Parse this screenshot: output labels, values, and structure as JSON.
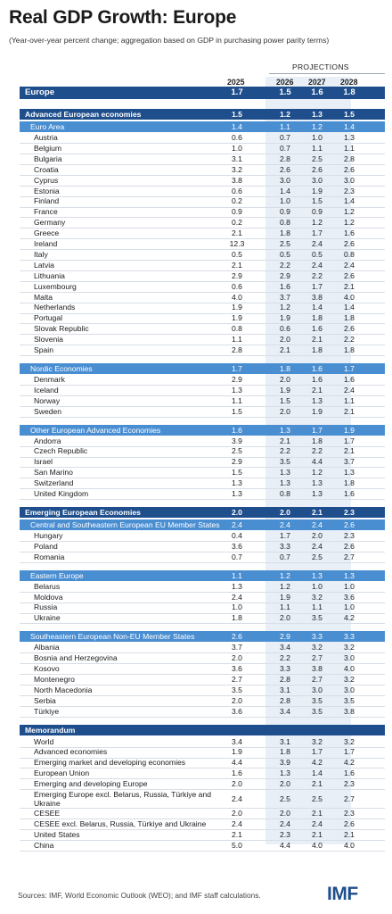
{
  "title": "Real GDP Growth: Europe",
  "subtitle": "(Year-over-year percent change; aggregation based on GDP in purchasing power parity terms)",
  "projections_label": "PROJECTIONS",
  "years": [
    "2025",
    "2026",
    "2027",
    "2028"
  ],
  "europe": {
    "name": "Europe",
    "values": [
      "1.7",
      "1.5",
      "1.6",
      "1.8"
    ]
  },
  "sections": [
    {
      "name": "Advanced European economies",
      "values": [
        "1.5",
        "1.2",
        "1.3",
        "1.5"
      ],
      "groups": [
        {
          "name": "Euro Area",
          "values": [
            "1.4",
            "1.1",
            "1.2",
            "1.4"
          ],
          "rows": [
            {
              "name": "Austria",
              "values": [
                "0.6",
                "0.7",
                "1.0",
                "1.3"
              ]
            },
            {
              "name": "Belgium",
              "values": [
                "1.0",
                "0.7",
                "1.1",
                "1.1"
              ]
            },
            {
              "name": "Bulgaria",
              "values": [
                "3.1",
                "2.8",
                "2.5",
                "2.8"
              ]
            },
            {
              "name": "Croatia",
              "values": [
                "3.2",
                "2.6",
                "2.6",
                "2.6"
              ]
            },
            {
              "name": "Cyprus",
              "values": [
                "3.8",
                "3.0",
                "3.0",
                "3.0"
              ]
            },
            {
              "name": "Estonia",
              "values": [
                "0.6",
                "1.4",
                "1.9",
                "2.3"
              ]
            },
            {
              "name": "Finland",
              "values": [
                "0.2",
                "1.0",
                "1.5",
                "1.4"
              ]
            },
            {
              "name": "France",
              "values": [
                "0.9",
                "0.9",
                "0.9",
                "1.2"
              ]
            },
            {
              "name": "Germany",
              "values": [
                "0.2",
                "0.8",
                "1.2",
                "1.2"
              ]
            },
            {
              "name": "Greece",
              "values": [
                "2.1",
                "1.8",
                "1.7",
                "1.6"
              ]
            },
            {
              "name": "Ireland",
              "values": [
                "12.3",
                "2.5",
                "2.4",
                "2.6"
              ]
            },
            {
              "name": "Italy",
              "values": [
                "0.5",
                "0.5",
                "0.5",
                "0.8"
              ]
            },
            {
              "name": "Latvia",
              "values": [
                "2.1",
                "2.2",
                "2.4",
                "2.4"
              ]
            },
            {
              "name": "Lithuania",
              "values": [
                "2.9",
                "2.9",
                "2.2",
                "2.6"
              ]
            },
            {
              "name": "Luxembourg",
              "values": [
                "0.6",
                "1.6",
                "1.7",
                "2.1"
              ]
            },
            {
              "name": "Malta",
              "values": [
                "4.0",
                "3.7",
                "3.8",
                "4.0"
              ]
            },
            {
              "name": "Netherlands",
              "values": [
                "1.9",
                "1.2",
                "1.4",
                "1.4"
              ]
            },
            {
              "name": "Portugal",
              "values": [
                "1.9",
                "1.9",
                "1.8",
                "1.8"
              ]
            },
            {
              "name": "Slovak Republic",
              "values": [
                "0.8",
                "0.6",
                "1.6",
                "2.6"
              ]
            },
            {
              "name": "Slovenia",
              "values": [
                "1.1",
                "2.0",
                "2.1",
                "2.2"
              ]
            },
            {
              "name": "Spain",
              "values": [
                "2.8",
                "2.1",
                "1.8",
                "1.8"
              ]
            }
          ]
        },
        {
          "name": "Nordic Economies",
          "values": [
            "1.7",
            "1.8",
            "1.6",
            "1.7"
          ],
          "rows": [
            {
              "name": "Denmark",
              "values": [
                "2.9",
                "2.0",
                "1.6",
                "1.6"
              ]
            },
            {
              "name": "Iceland",
              "values": [
                "1.3",
                "1.9",
                "2.1",
                "2.4"
              ]
            },
            {
              "name": "Norway",
              "values": [
                "1.1",
                "1.5",
                "1.3",
                "1.1"
              ]
            },
            {
              "name": "Sweden",
              "values": [
                "1.5",
                "2.0",
                "1.9",
                "2.1"
              ]
            }
          ]
        },
        {
          "name": "Other European Advanced Economies",
          "values": [
            "1.6",
            "1.3",
            "1.7",
            "1.9"
          ],
          "rows": [
            {
              "name": "Andorra",
              "values": [
                "3.9",
                "2.1",
                "1.8",
                "1.7"
              ]
            },
            {
              "name": "Czech Republic",
              "values": [
                "2.5",
                "2.2",
                "2.2",
                "2.1"
              ]
            },
            {
              "name": "Israel",
              "values": [
                "2.9",
                "3.5",
                "4.4",
                "3.7"
              ]
            },
            {
              "name": "San Marino",
              "values": [
                "1.5",
                "1.3",
                "1.2",
                "1.3"
              ]
            },
            {
              "name": "Switzerland",
              "values": [
                "1.3",
                "1.3",
                "1.3",
                "1.8"
              ]
            },
            {
              "name": "United Kingdom",
              "values": [
                "1.3",
                "0.8",
                "1.3",
                "1.6"
              ]
            }
          ]
        }
      ]
    },
    {
      "name": "Emerging European Economies",
      "values": [
        "2.0",
        "2.0",
        "2.1",
        "2.3"
      ],
      "groups": [
        {
          "name": "Central and Southeastern European EU Member States",
          "values": [
            "2.4",
            "2.4",
            "2.4",
            "2.6"
          ],
          "rows": [
            {
              "name": "Hungary",
              "values": [
                "0.4",
                "1.7",
                "2.0",
                "2.3"
              ]
            },
            {
              "name": "Poland",
              "values": [
                "3.6",
                "3.3",
                "2.4",
                "2.6"
              ]
            },
            {
              "name": "Romania",
              "values": [
                "0.7",
                "0.7",
                "2.5",
                "2.7"
              ]
            }
          ]
        },
        {
          "name": "Eastern Europe",
          "values": [
            "1.1",
            "1.2",
            "1.3",
            "1.3"
          ],
          "rows": [
            {
              "name": "Belarus",
              "values": [
                "1.3",
                "1.2",
                "1.0",
                "1.0"
              ]
            },
            {
              "name": "Moldova",
              "values": [
                "2.4",
                "1.9",
                "3.2",
                "3.6"
              ]
            },
            {
              "name": "Russia",
              "values": [
                "1.0",
                "1.1",
                "1.1",
                "1.0"
              ]
            },
            {
              "name": "Ukraine",
              "values": [
                "1.8",
                "2.0",
                "3.5",
                "4.2"
              ]
            }
          ]
        },
        {
          "name": "Southeastern European Non-EU Member States",
          "values": [
            "2.6",
            "2.9",
            "3.3",
            "3.3"
          ],
          "rows": [
            {
              "name": "Albania",
              "values": [
                "3.7",
                "3.4",
                "3.2",
                "3.2"
              ]
            },
            {
              "name": "Bosnia and Herzegovina",
              "values": [
                "2.0",
                "2.2",
                "2.7",
                "3.0"
              ]
            },
            {
              "name": "Kosovo",
              "values": [
                "3.6",
                "3.3",
                "3.8",
                "4.0"
              ]
            },
            {
              "name": "Montenegro",
              "values": [
                "2.7",
                "2.8",
                "2.7",
                "3.2"
              ]
            },
            {
              "name": "North Macedonia",
              "values": [
                "3.5",
                "3.1",
                "3.0",
                "3.0"
              ]
            },
            {
              "name": "Serbia",
              "values": [
                "2.0",
                "2.8",
                "3.5",
                "3.5"
              ]
            },
            {
              "name": "Türkiye",
              "values": [
                "3.6",
                "3.4",
                "3.5",
                "3.8"
              ]
            }
          ]
        }
      ]
    }
  ],
  "memorandum": {
    "name": "Memorandum",
    "rows": [
      {
        "name": "World",
        "values": [
          "3.4",
          "3.1",
          "3.2",
          "3.2"
        ]
      },
      {
        "name": "Advanced economies",
        "values": [
          "1.9",
          "1.8",
          "1.7",
          "1.7"
        ]
      },
      {
        "name": "Emerging market and developing economies",
        "values": [
          "4.4",
          "3.9",
          "4.2",
          "4.2"
        ]
      },
      {
        "name": "European Union",
        "values": [
          "1.6",
          "1.3",
          "1.4",
          "1.6"
        ]
      },
      {
        "name": "Emerging and developing Europe",
        "values": [
          "2.0",
          "2.0",
          "2.1",
          "2.3"
        ]
      },
      {
        "name": "Emerging Europe excl. Belarus, Russia, Türkiye and Ukraine",
        "values": [
          "2.4",
          "2.5",
          "2.5",
          "2.7"
        ]
      },
      {
        "name": "CESEE",
        "values": [
          "2.0",
          "2.0",
          "2.1",
          "2.3"
        ]
      },
      {
        "name": "CESEE excl. Belarus, Russia, Türkiye and Ukraine",
        "values": [
          "2.4",
          "2.4",
          "2.4",
          "2.6"
        ]
      },
      {
        "name": "United States",
        "values": [
          "2.1",
          "2.3",
          "2.1",
          "2.1"
        ]
      },
      {
        "name": "China",
        "values": [
          "5.0",
          "4.4",
          "4.0",
          "4.0"
        ]
      }
    ]
  },
  "source": "Sources: IMF, World Economic Outlook (WEO); and IMF staff calculations.",
  "logo": "IMF",
  "colors": {
    "dark_header": "#1e4e8c",
    "light_header": "#4a8ed2",
    "projection_shade": "#e9eff6"
  }
}
